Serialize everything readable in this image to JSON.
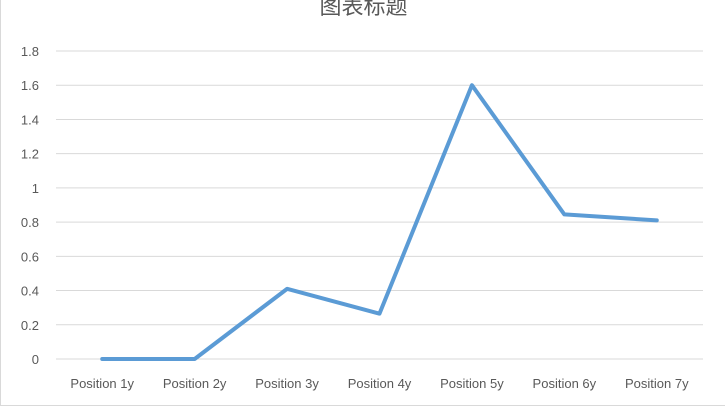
{
  "chart_data": {
    "type": "line",
    "title": "图表标题",
    "categories": [
      "Position 1y",
      "Position 2y",
      "Position 3y",
      "Position 4y",
      "Position 5y",
      "Position 6y",
      "Position 7y"
    ],
    "series": [
      {
        "values": [
          0,
          0,
          0.41,
          0.265,
          1.6,
          0.845,
          0.81
        ],
        "color": "#5b9bd5"
      }
    ],
    "yticks": [
      "0",
      "0.2",
      "0.4",
      "0.6",
      "0.8",
      "1",
      "1.2",
      "1.4",
      "1.6",
      "1.8"
    ],
    "ylim": [
      0,
      1.8
    ],
    "grid": true,
    "legend": "none"
  }
}
